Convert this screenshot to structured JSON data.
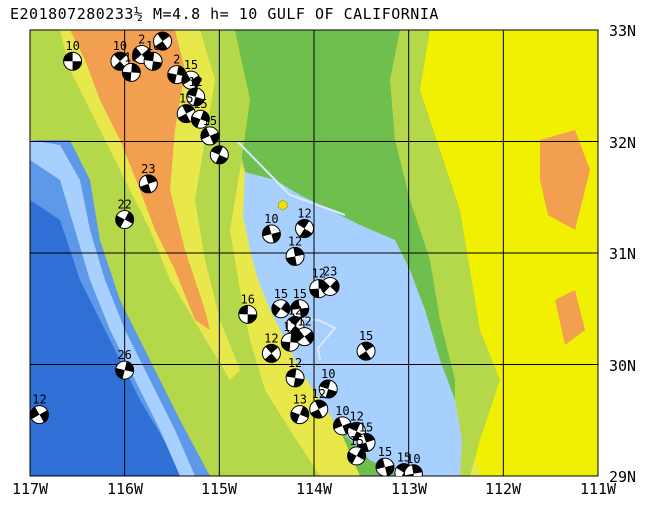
{
  "title": "E201807280233½ M=4.8 h= 10 GULF OF CALIFORNIA",
  "axes": {
    "lat_ticks": [
      "33N",
      "32N",
      "31N",
      "30N",
      "29N"
    ],
    "lon_ticks": [
      "117W",
      "116W",
      "115W",
      "114W",
      "113W",
      "112W",
      "111W"
    ],
    "lat_range": [
      29,
      33
    ],
    "lon_range": [
      -117,
      -111
    ]
  },
  "colors": {
    "deep_ocean": "#2f6fd6",
    "ocean": "#5e98e8",
    "shelf": "#a8d0ff",
    "lowland": "#6fbf4f",
    "hills": "#b5d84a",
    "upland": "#e8e84a",
    "plateau": "#f0f000",
    "highland": "#f2a050",
    "epicenter": "#f0e000",
    "grid": "#000000"
  },
  "epicenter": {
    "lon": -114.33,
    "lat": 31.43
  },
  "events": [
    {
      "lon": -116.55,
      "lat": 32.72,
      "label": "10"
    },
    {
      "lon": -116.05,
      "lat": 32.72,
      "label": "10"
    },
    {
      "lon": -115.93,
      "lat": 32.62,
      "label": "10"
    },
    {
      "lon": -115.82,
      "lat": 32.78,
      "label": "2"
    },
    {
      "lon": -115.7,
      "lat": 32.72,
      "label": "10"
    },
    {
      "lon": -115.6,
      "lat": 32.9,
      "label": "2"
    },
    {
      "lon": -115.45,
      "lat": 32.6,
      "label": "2"
    },
    {
      "lon": -115.3,
      "lat": 32.55,
      "label": "15"
    },
    {
      "lon": -115.25,
      "lat": 32.4,
      "label": "12"
    },
    {
      "lon": -115.35,
      "lat": 32.25,
      "label": "15"
    },
    {
      "lon": -115.2,
      "lat": 32.2,
      "label": "15"
    },
    {
      "lon": -115.1,
      "lat": 32.05,
      "label": "15"
    },
    {
      "lon": -115.0,
      "lat": 31.88,
      "label": ""
    },
    {
      "lon": -115.75,
      "lat": 31.62,
      "label": "23"
    },
    {
      "lon": -116.0,
      "lat": 31.3,
      "label": "22"
    },
    {
      "lon": -114.45,
      "lat": 31.17,
      "label": "10"
    },
    {
      "lon": -114.1,
      "lat": 31.22,
      "label": "12"
    },
    {
      "lon": -114.2,
      "lat": 30.97,
      "label": "12"
    },
    {
      "lon": -114.35,
      "lat": 30.5,
      "label": "15"
    },
    {
      "lon": -114.15,
      "lat": 30.5,
      "label": "15"
    },
    {
      "lon": -114.2,
      "lat": 30.35,
      "label": "12"
    },
    {
      "lon": -113.95,
      "lat": 30.68,
      "label": "12"
    },
    {
      "lon": -113.83,
      "lat": 30.7,
      "label": "23"
    },
    {
      "lon": -114.7,
      "lat": 30.45,
      "label": "16"
    },
    {
      "lon": -114.45,
      "lat": 30.1,
      "label": "12"
    },
    {
      "lon": -114.25,
      "lat": 30.2,
      "label": "12"
    },
    {
      "lon": -114.1,
      "lat": 30.25,
      "label": "12"
    },
    {
      "lon": -114.2,
      "lat": 29.88,
      "label": "12"
    },
    {
      "lon": -113.45,
      "lat": 30.12,
      "label": "15"
    },
    {
      "lon": -116.0,
      "lat": 29.95,
      "label": "26"
    },
    {
      "lon": -116.9,
      "lat": 29.55,
      "label": "12"
    },
    {
      "lon": -113.85,
      "lat": 29.78,
      "label": "10"
    },
    {
      "lon": -113.95,
      "lat": 29.6,
      "label": "12"
    },
    {
      "lon": -114.15,
      "lat": 29.55,
      "label": "13"
    },
    {
      "lon": -113.7,
      "lat": 29.45,
      "label": "10"
    },
    {
      "lon": -113.55,
      "lat": 29.4,
      "label": "12"
    },
    {
      "lon": -113.45,
      "lat": 29.3,
      "label": "15"
    },
    {
      "lon": -113.55,
      "lat": 29.18,
      "label": "15"
    },
    {
      "lon": -113.25,
      "lat": 29.08,
      "label": "15"
    },
    {
      "lon": -113.05,
      "lat": 29.03,
      "label": "15"
    },
    {
      "lon": -112.95,
      "lat": 29.02,
      "label": "10"
    }
  ]
}
